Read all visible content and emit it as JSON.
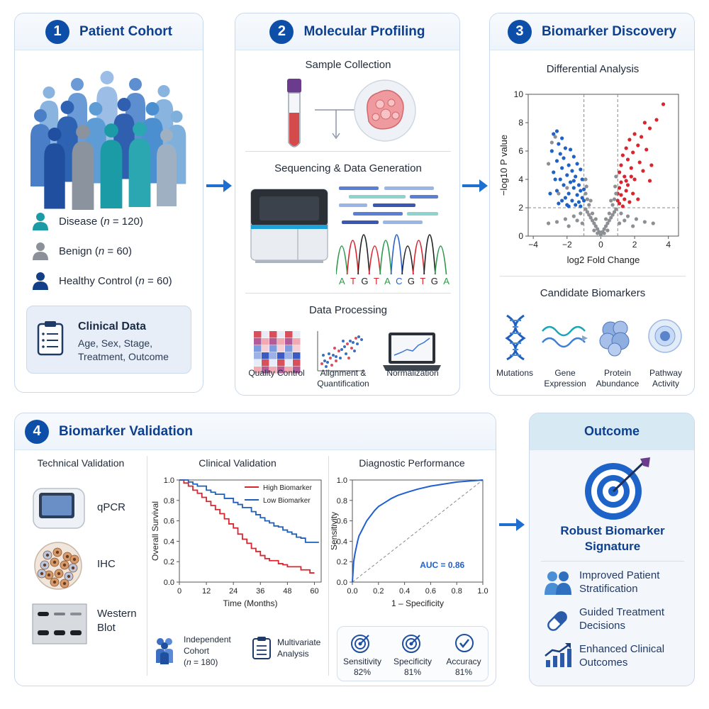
{
  "panels": {
    "cohort": {
      "num": "1",
      "title": "Patient Cohort",
      "groups": [
        {
          "prefix": "Disease (",
          "n": "n",
          "rest": " = 120)",
          "color": "#1a9ba5"
        },
        {
          "prefix": "Benign (",
          "n": "n",
          "rest": " = 60)",
          "color": "#8c9199"
        },
        {
          "prefix": "Healthy Control (",
          "n": "n",
          "rest": " = 60)",
          "color": "#123f86"
        }
      ],
      "clinical": {
        "title": "Clinical Data",
        "line1": "Age, Sex, Stage,",
        "line2": "Treatment, Outcome"
      }
    },
    "profiling": {
      "num": "2",
      "title": "Molecular Profiling",
      "sample": "Sample Collection",
      "sequencing": "Sequencing & Data Generation",
      "bases": [
        "A",
        "T",
        "G",
        "T",
        "A",
        "C",
        "G",
        "T",
        "G",
        "A"
      ],
      "processing": "Data Processing",
      "steps": {
        "qc": "Quality Control",
        "align1": "Alignment &",
        "align2": "Quantification",
        "norm": "Normalization"
      }
    },
    "discovery": {
      "num": "3",
      "title": "Biomarker Discovery",
      "differential": "Differential Analysis",
      "candidates": "Candidate Biomarkers",
      "cand": {
        "mut": "Mutations",
        "gene1": "Gene",
        "gene2": "Expression",
        "prot1": "Protein",
        "prot2": "Abundance",
        "path1": "Pathway",
        "path2": "Activity"
      }
    },
    "validation": {
      "num": "4",
      "title": "Biomarker Validation",
      "technical": "Technical Validation",
      "methods": {
        "qpcr": "qPCR",
        "ihc": "IHC",
        "wb1": "Western",
        "wb2": "Blot"
      },
      "clinical": "Clinical Validation",
      "diagnostic": "Diagnostic Performance",
      "cohort": {
        "l1": "Independent",
        "l2": "Cohort",
        "l3pre": "(",
        "l3n": "n",
        "l3post": " = 180)"
      },
      "multivariate": {
        "l1": "Multivariate",
        "l2": "Analysis"
      },
      "metrics": [
        {
          "label": "Sensitivity",
          "value": "82%"
        },
        {
          "label": "Specificity",
          "value": "81%"
        },
        {
          "label": "Accuracy",
          "value": "81%"
        }
      ]
    },
    "outcome": {
      "title": "Outcome",
      "signature1": "Robust Biomarker",
      "signature2": "Signature",
      "items": [
        {
          "l1": "Improved Patient",
          "l2": "Stratification"
        },
        {
          "l1": "Guided Treatment",
          "l2": "Decisions"
        },
        {
          "l1": "Enhanced Clinical",
          "l2": "Outcomes"
        }
      ]
    }
  },
  "chart_data": [
    {
      "type": "scatter",
      "title": "",
      "xlabel": "log2 Fold Change",
      "ylabel": "−log10 P value",
      "xlim": [
        -4.3,
        4.6
      ],
      "ylim": [
        0,
        10
      ],
      "xticks": [
        "−4",
        "−2",
        "0",
        "2",
        "4"
      ],
      "yticks": [
        "0",
        "2",
        "4",
        "6",
        "8",
        "10"
      ],
      "thresholds": {
        "x": [
          -1,
          1
        ],
        "y": 2
      },
      "series": [
        {
          "color": "#1f62c6",
          "points": [
            [
              -2.8,
              7.2
            ],
            [
              -2.6,
              7.4
            ],
            [
              -2.3,
              6.9
            ],
            [
              -2.5,
              6.5
            ],
            [
              -2.1,
              6.2
            ],
            [
              -2.9,
              6.0
            ],
            [
              -2.4,
              5.8
            ],
            [
              -1.8,
              6.1
            ],
            [
              -2.2,
              5.5
            ],
            [
              -1.6,
              5.6
            ],
            [
              -2.6,
              5.3
            ],
            [
              -1.9,
              5.0
            ],
            [
              -1.4,
              5.1
            ],
            [
              -2.3,
              4.8
            ],
            [
              -1.7,
              4.6
            ],
            [
              -2.8,
              4.5
            ],
            [
              -1.2,
              4.7
            ],
            [
              -2.0,
              4.3
            ],
            [
              -1.5,
              4.2
            ],
            [
              -2.4,
              4.0
            ],
            [
              -1.1,
              4.0
            ],
            [
              -1.8,
              3.8
            ],
            [
              -2.2,
              3.6
            ],
            [
              -1.3,
              3.6
            ],
            [
              -1.6,
              3.4
            ],
            [
              -2.6,
              3.2
            ],
            [
              -1.2,
              3.2
            ],
            [
              -1.9,
              3.0
            ],
            [
              -1.4,
              2.9
            ],
            [
              -2.1,
              2.7
            ],
            [
              -1.1,
              2.7
            ],
            [
              -1.7,
              2.5
            ],
            [
              -1.3,
              2.4
            ],
            [
              -2.3,
              2.5
            ],
            [
              -1.5,
              2.2
            ],
            [
              -1.2,
              2.1
            ],
            [
              -2.0,
              2.2
            ],
            [
              -3.0,
              3.0
            ],
            [
              -2.7,
              4.0
            ],
            [
              -1.0,
              3.3
            ],
            [
              -1.0,
              2.5
            ],
            [
              -1.6,
              3.9
            ],
            [
              -2.5,
              2.3
            ],
            [
              -1.9,
              2.1
            ]
          ]
        },
        {
          "color": "#d9262e",
          "points": [
            [
              3.7,
              9.3
            ],
            [
              3.3,
              8.2
            ],
            [
              2.9,
              7.6
            ],
            [
              2.6,
              8.0
            ],
            [
              2.0,
              7.2
            ],
            [
              2.4,
              7.0
            ],
            [
              1.7,
              6.8
            ],
            [
              2.2,
              6.4
            ],
            [
              1.5,
              6.2
            ],
            [
              1.9,
              5.9
            ],
            [
              2.7,
              6.1
            ],
            [
              1.3,
              5.7
            ],
            [
              1.6,
              5.4
            ],
            [
              2.3,
              5.2
            ],
            [
              1.2,
              5.0
            ],
            [
              1.8,
              4.8
            ],
            [
              2.5,
              4.6
            ],
            [
              1.1,
              4.5
            ],
            [
              1.4,
              4.2
            ],
            [
              2.0,
              4.0
            ],
            [
              1.2,
              3.8
            ],
            [
              1.6,
              3.6
            ],
            [
              2.9,
              3.9
            ],
            [
              1.1,
              3.4
            ],
            [
              1.5,
              3.2
            ],
            [
              1.9,
              3.0
            ],
            [
              1.2,
              2.9
            ],
            [
              1.4,
              2.6
            ],
            [
              1.7,
              2.4
            ],
            [
              1.1,
              2.3
            ],
            [
              1.3,
              2.1
            ],
            [
              2.2,
              2.6
            ],
            [
              1.0,
              3.0
            ],
            [
              1.0,
              2.5
            ],
            [
              3.0,
              5.0
            ],
            [
              1.8,
              4.2
            ],
            [
              1.5,
              3.9
            ]
          ]
        },
        {
          "color": "#8c8f94",
          "points": [
            [
              0,
              0.1
            ],
            [
              0.1,
              0.3
            ],
            [
              -0.1,
              0.3
            ],
            [
              0.2,
              0.5
            ],
            [
              -0.2,
              0.5
            ],
            [
              0.3,
              0.7
            ],
            [
              -0.3,
              0.7
            ],
            [
              0.4,
              0.9
            ],
            [
              -0.4,
              0.9
            ],
            [
              0.5,
              1.1
            ],
            [
              -0.5,
              1.1
            ],
            [
              0.6,
              1.3
            ],
            [
              -0.6,
              1.3
            ],
            [
              0.7,
              1.5
            ],
            [
              -0.7,
              1.5
            ],
            [
              0.8,
              1.7
            ],
            [
              -0.8,
              1.7
            ],
            [
              0.9,
              1.9
            ],
            [
              -0.9,
              1.9
            ],
            [
              0.5,
              1.6
            ],
            [
              -0.5,
              1.6
            ],
            [
              0.3,
              1.2
            ],
            [
              -0.3,
              1.2
            ],
            [
              0.7,
              2.2
            ],
            [
              -0.7,
              2.2
            ],
            [
              0.8,
              2.6
            ],
            [
              -0.8,
              2.6
            ],
            [
              0.9,
              3.0
            ],
            [
              -0.9,
              3.0
            ],
            [
              0.6,
              2.5
            ],
            [
              -0.6,
              2.5
            ],
            [
              0.85,
              3.5
            ],
            [
              -0.85,
              3.5
            ],
            [
              0.9,
              4.2
            ],
            [
              -0.9,
              4.0
            ],
            [
              1.2,
              1.6
            ],
            [
              -1.2,
              1.6
            ],
            [
              1.6,
              1.4
            ],
            [
              -1.6,
              1.4
            ],
            [
              2.1,
              1.2
            ],
            [
              -2.1,
              1.2
            ],
            [
              2.6,
              1.0
            ],
            [
              -2.6,
              1.0
            ],
            [
              3.1,
              0.9
            ],
            [
              -3.1,
              0.9
            ],
            [
              1.4,
              1.1
            ],
            [
              -1.4,
              1.1
            ],
            [
              1.9,
              0.7
            ],
            [
              -1.9,
              0.7
            ],
            [
              0.2,
              0.2
            ],
            [
              -0.2,
              0.2
            ],
            [
              1.1,
              0.9
            ],
            [
              -1.1,
              0.9
            ],
            [
              -2.9,
              6.6
            ],
            [
              -3.1,
              5.1
            ],
            [
              -2.7,
              7.0
            ],
            [
              -2.0,
              3.4
            ],
            [
              -2.5,
              3.0
            ],
            [
              0.4,
              0.4
            ],
            [
              -0.4,
              0.4
            ]
          ]
        }
      ]
    },
    {
      "type": "line",
      "title": "",
      "xlabel": "Time (Months)",
      "ylabel": "Overall Survival",
      "xlim": [
        0,
        63
      ],
      "ylim": [
        0,
        1.0
      ],
      "xticks": [
        "0",
        "12",
        "24",
        "36",
        "48",
        "60"
      ],
      "yticks": [
        "0.0",
        "0.2",
        "0.4",
        "0.6",
        "0.8",
        "1.0"
      ],
      "series": [
        {
          "name": "High Biomarker",
          "color": "#d9262e",
          "points": [
            [
              0,
              1.0
            ],
            [
              2,
              0.97
            ],
            [
              4,
              0.94
            ],
            [
              6,
              0.9
            ],
            [
              8,
              0.87
            ],
            [
              10,
              0.83
            ],
            [
              12,
              0.79
            ],
            [
              14,
              0.75
            ],
            [
              16,
              0.71
            ],
            [
              18,
              0.67
            ],
            [
              20,
              0.62
            ],
            [
              22,
              0.57
            ],
            [
              24,
              0.53
            ],
            [
              26,
              0.47
            ],
            [
              28,
              0.42
            ],
            [
              30,
              0.38
            ],
            [
              32,
              0.33
            ],
            [
              34,
              0.3
            ],
            [
              36,
              0.26
            ],
            [
              38,
              0.23
            ],
            [
              40,
              0.21
            ],
            [
              42,
              0.21
            ],
            [
              44,
              0.18
            ],
            [
              46,
              0.17
            ],
            [
              48,
              0.15
            ],
            [
              52,
              0.15
            ],
            [
              54,
              0.12
            ],
            [
              56,
              0.12
            ],
            [
              58,
              0.09
            ],
            [
              60,
              0.09
            ]
          ]
        },
        {
          "name": "Low Biomarker",
          "color": "#1f5fb8",
          "points": [
            [
              0,
              1.0
            ],
            [
              4,
              0.98
            ],
            [
              6,
              0.96
            ],
            [
              8,
              0.94
            ],
            [
              12,
              0.9
            ],
            [
              14,
              0.88
            ],
            [
              16,
              0.86
            ],
            [
              20,
              0.82
            ],
            [
              24,
              0.78
            ],
            [
              26,
              0.76
            ],
            [
              28,
              0.73
            ],
            [
              32,
              0.69
            ],
            [
              34,
              0.66
            ],
            [
              36,
              0.63
            ],
            [
              38,
              0.6
            ],
            [
              40,
              0.58
            ],
            [
              42,
              0.55
            ],
            [
              44,
              0.54
            ],
            [
              46,
              0.51
            ],
            [
              48,
              0.49
            ],
            [
              50,
              0.47
            ],
            [
              52,
              0.44
            ],
            [
              54,
              0.43
            ],
            [
              56,
              0.39
            ],
            [
              58,
              0.39
            ],
            [
              62,
              0.39
            ]
          ]
        }
      ]
    },
    {
      "type": "line",
      "title": "",
      "xlabel": "1 – Specificity",
      "ylabel": "Sensitivity",
      "xlim": [
        0,
        1.0
      ],
      "ylim": [
        0,
        1.0
      ],
      "xticks": [
        "0.0",
        "0.2",
        "0.4",
        "0.6",
        "0.8",
        "1.0"
      ],
      "yticks": [
        "0.0",
        "0.2",
        "0.4",
        "0.6",
        "0.8",
        "1.0"
      ],
      "annotation": "AUC = 0.86",
      "series": [
        {
          "color": "#1f5fd0",
          "points": [
            [
              0,
              0
            ],
            [
              0.005,
              0.1
            ],
            [
              0.01,
              0.2
            ],
            [
              0.02,
              0.28
            ],
            [
              0.03,
              0.34
            ],
            [
              0.04,
              0.4
            ],
            [
              0.05,
              0.45
            ],
            [
              0.07,
              0.5
            ],
            [
              0.09,
              0.55
            ],
            [
              0.11,
              0.6
            ],
            [
              0.14,
              0.65
            ],
            [
              0.17,
              0.7
            ],
            [
              0.2,
              0.74
            ],
            [
              0.25,
              0.78
            ],
            [
              0.3,
              0.82
            ],
            [
              0.35,
              0.85
            ],
            [
              0.42,
              0.88
            ],
            [
              0.5,
              0.91
            ],
            [
              0.6,
              0.94
            ],
            [
              0.7,
              0.96
            ],
            [
              0.8,
              0.98
            ],
            [
              0.9,
              0.99
            ],
            [
              1,
              1
            ]
          ]
        }
      ]
    }
  ]
}
